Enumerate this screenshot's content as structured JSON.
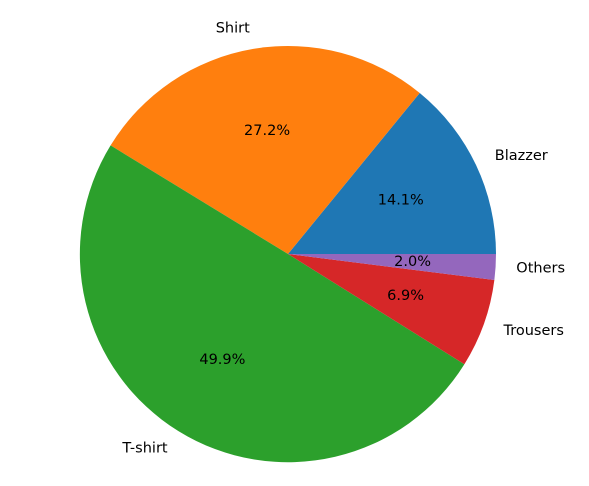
{
  "chart_data": {
    "type": "pie",
    "title": "",
    "start_angle_deg": 0,
    "direction": "counterclockwise",
    "legend": "none",
    "slices": [
      {
        "label": "Blazzer",
        "value": 14.1,
        "pct_label": "14.1%",
        "color": "#1f77b4"
      },
      {
        "label": "Shirt",
        "value": 27.2,
        "pct_label": "27.2%",
        "color": "#ff7f0e"
      },
      {
        "label": "T-shirt",
        "value": 49.9,
        "pct_label": "49.9%",
        "color": "#2ca02c"
      },
      {
        "label": "Trousers",
        "value": 6.9,
        "pct_label": "6.9%",
        "color": "#d62728"
      },
      {
        "label": "Others",
        "value": 2.0,
        "pct_label": "2.0%",
        "color": "#9467bd"
      }
    ]
  }
}
